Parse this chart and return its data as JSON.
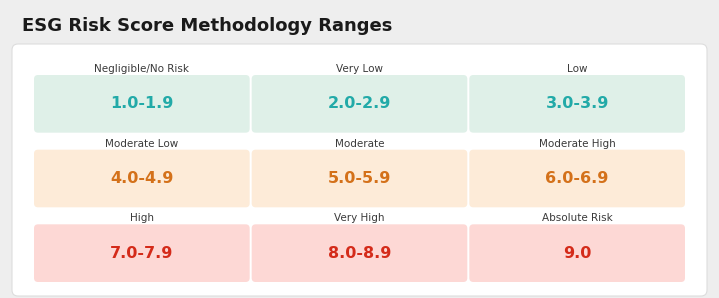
{
  "title": "ESG Risk Score Methodology Ranges",
  "title_fontsize": 13,
  "title_color": "#1a1a1a",
  "background_outer": "#eeeeee",
  "background_inner": "#ffffff",
  "cells": [
    [
      {
        "label": "Negligible/No Risk",
        "value": "1.0-1.9",
        "bg": "#dff0e8",
        "value_color": "#22aaa8",
        "label_color": "#3a3a3a"
      },
      {
        "label": "Very Low",
        "value": "2.0-2.9",
        "bg": "#dff0e8",
        "value_color": "#22aaa8",
        "label_color": "#3a3a3a"
      },
      {
        "label": "Low",
        "value": "3.0-3.9",
        "bg": "#dff0e8",
        "value_color": "#22aaa8",
        "label_color": "#3a3a3a"
      }
    ],
    [
      {
        "label": "Moderate Low",
        "value": "4.0-4.9",
        "bg": "#fdebd8",
        "value_color": "#d4711a",
        "label_color": "#3a3a3a"
      },
      {
        "label": "Moderate",
        "value": "5.0-5.9",
        "bg": "#fdebd8",
        "value_color": "#d4711a",
        "label_color": "#3a3a3a"
      },
      {
        "label": "Moderate High",
        "value": "6.0-6.9",
        "bg": "#fdebd8",
        "value_color": "#d4711a",
        "label_color": "#3a3a3a"
      }
    ],
    [
      {
        "label": "High",
        "value": "7.0-7.9",
        "bg": "#fdd8d5",
        "value_color": "#d42b1a",
        "label_color": "#3a3a3a"
      },
      {
        "label": "Very High",
        "value": "8.0-8.9",
        "bg": "#fdd8d5",
        "value_color": "#d42b1a",
        "label_color": "#3a3a3a"
      },
      {
        "label": "Absolute Risk",
        "value": "9.0",
        "bg": "#fdd8d5",
        "value_color": "#d42b1a",
        "label_color": "#3a3a3a"
      }
    ]
  ],
  "label_fontsize": 7.5,
  "value_fontsize": 11.5
}
